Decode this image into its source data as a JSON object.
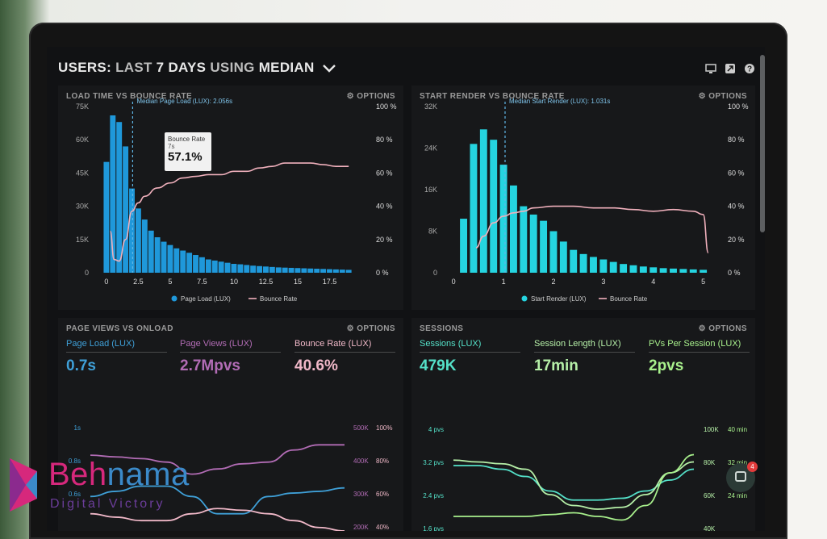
{
  "header": {
    "title_parts": [
      "USERS: ",
      "LAST ",
      "7 DAYS",
      " USING ",
      "MEDIAN"
    ],
    "icons": [
      "monitor-icon",
      "share-icon",
      "help-icon"
    ]
  },
  "panels": {
    "load": {
      "title": "LOAD TIME VS BOUNCE RATE",
      "options": "OPTIONS",
      "median_label": "Median Page Load (LUX): 2.056s",
      "tooltip": {
        "title": "Bounce Rate",
        "sub": "7s",
        "value": "57.1%"
      },
      "legend": [
        "Page Load (LUX)",
        "Bounce Rate"
      ]
    },
    "render": {
      "title": "START RENDER VS BOUNCE RATE",
      "options": "OPTIONS",
      "median_label": "Median Start Render (LUX): 1.031s",
      "legend": [
        "Start Render (LUX)",
        "Bounce Rate"
      ]
    },
    "pageviews": {
      "title": "PAGE VIEWS VS ONLOAD",
      "options": "OPTIONS",
      "metrics": [
        {
          "label": "Page Load (LUX)",
          "value": "0.7s",
          "color": "#3fa0d8"
        },
        {
          "label": "Page Views (LUX)",
          "value": "2.7Mpvs",
          "color": "#b26cb5"
        },
        {
          "label": "Bounce Rate (LUX)",
          "value": "40.6%",
          "color": "#f0b8c8"
        }
      ]
    },
    "sessions": {
      "title": "SESSIONS",
      "options": "OPTIONS",
      "metrics": [
        {
          "label": "Sessions (LUX)",
          "value": "479K",
          "color": "#54e0c8"
        },
        {
          "label": "Session Length (LUX)",
          "value": "17min",
          "color": "#b6f0a8"
        },
        {
          "label": "PVs Per Session (LUX)",
          "value": "2pvs",
          "color": "#a8f08c"
        }
      ]
    }
  },
  "chart_data": [
    {
      "type": "bar",
      "title": "LOAD TIME VS BOUNCE RATE",
      "x_ticks": [
        "0",
        "2.5",
        "5",
        "7.5",
        "10",
        "12.5",
        "15",
        "17.5"
      ],
      "y_ticks": [
        "0",
        "15K",
        "30K",
        "45K",
        "60K",
        "75K"
      ],
      "y2_ticks": [
        "0 %",
        "20 %",
        "40 %",
        "60 %",
        "80 %",
        "100 %"
      ],
      "xlim": [
        -0.5,
        20
      ],
      "ylim": [
        0,
        75000
      ],
      "y2lim": [
        0,
        100
      ],
      "bar_width": 0.5,
      "series": [
        {
          "name": "Page Load (LUX)",
          "color": "#1f98da",
          "x": [
            0,
            0.5,
            1,
            1.5,
            2,
            2.5,
            3,
            3.5,
            4,
            4.5,
            5,
            5.5,
            6,
            6.5,
            7,
            7.5,
            8,
            8.5,
            9,
            9.5,
            10,
            10.5,
            11,
            11.5,
            12,
            12.5,
            13,
            13.5,
            14,
            14.5,
            15,
            15.5,
            16,
            16.5,
            17,
            17.5,
            18,
            18.5,
            19
          ],
          "values": [
            50000,
            71000,
            68000,
            57000,
            38000,
            29000,
            24000,
            19000,
            16000,
            14000,
            12500,
            11000,
            10000,
            9000,
            8000,
            7000,
            6000,
            5500,
            5000,
            4500,
            4000,
            3800,
            3500,
            3200,
            3000,
            2800,
            2600,
            2400,
            2300,
            2200,
            2100,
            2000,
            1900,
            1800,
            1700,
            1600,
            1500,
            1400,
            1300
          ]
        },
        {
          "name": "Bounce Rate",
          "color": "#f0b0bc",
          "axis": "y2",
          "x": [
            0.3,
            0.6,
            1.0,
            1.5,
            2.0,
            2.5,
            3,
            4,
            5,
            6,
            7,
            8,
            9,
            10,
            11,
            12,
            13,
            14,
            15,
            16,
            17,
            18,
            19
          ],
          "values": [
            25,
            8,
            7,
            20,
            37,
            42,
            46,
            51,
            54,
            57,
            58,
            59,
            59,
            61,
            61,
            63,
            64,
            66,
            66,
            66,
            65,
            64,
            64
          ]
        }
      ],
      "median_x": 2.056,
      "legend": [
        "Page Load (LUX)",
        "Bounce Rate"
      ]
    },
    {
      "type": "bar",
      "title": "START RENDER VS BOUNCE RATE",
      "x_ticks": [
        "0",
        "1",
        "2",
        "3",
        "4",
        "5"
      ],
      "y_ticks": [
        "0",
        "8K",
        "16K",
        "24K",
        "32K"
      ],
      "y2_ticks": [
        "0 %",
        "20 %",
        "40 %",
        "60 %",
        "80 %",
        "100 %"
      ],
      "xlim": [
        -0.1,
        5.2
      ],
      "ylim": [
        0,
        40000
      ],
      "y2lim": [
        0,
        100
      ],
      "bar_width": 0.16,
      "series": [
        {
          "name": "Start Render (LUX)",
          "color": "#25d4e0",
          "x": [
            0.2,
            0.4,
            0.6,
            0.8,
            1.0,
            1.2,
            1.4,
            1.6,
            1.8,
            2.0,
            2.2,
            2.4,
            2.6,
            2.8,
            3.0,
            3.2,
            3.4,
            3.6,
            3.8,
            4.0,
            4.2,
            4.4,
            4.6,
            4.8,
            5.0
          ],
          "values": [
            13000,
            31000,
            34500,
            32000,
            26000,
            21000,
            16000,
            14000,
            12500,
            10000,
            7500,
            5500,
            4500,
            3800,
            3200,
            2600,
            2100,
            1800,
            1500,
            1300,
            1100,
            1000,
            900,
            800,
            700
          ]
        },
        {
          "name": "Bounce Rate",
          "color": "#f0b0bc",
          "axis": "y2",
          "x": [
            0.45,
            0.6,
            0.8,
            1.0,
            1.2,
            1.4,
            1.6,
            2,
            2.4,
            2.8,
            3.2,
            3.6,
            4.0,
            4.4,
            4.8,
            5.0,
            5.1
          ],
          "values": [
            15,
            22,
            30,
            34,
            36,
            37,
            39,
            40,
            40,
            39,
            39,
            38,
            37,
            38,
            37,
            35,
            12
          ]
        }
      ],
      "median_x": 1.031,
      "legend": [
        "Start Render (LUX)",
        "Bounce Rate"
      ]
    },
    {
      "type": "line",
      "title": "PAGE VIEWS VS ONLOAD",
      "y_ticks": [
        "1s",
        "0.8s",
        "0.6s"
      ],
      "y2_ticks": [
        "500K",
        "400K",
        "300K",
        "200K"
      ],
      "y3_ticks": [
        "100%",
        "80%",
        "60%",
        "40%"
      ],
      "xlim": [
        0,
        10
      ],
      "ylim": [
        0.4,
        1.0
      ],
      "series": [
        {
          "name": "Page Load (LUX)",
          "color": "#3fa0d8",
          "x": [
            0,
            1,
            2,
            3,
            4,
            5,
            6,
            7,
            8,
            9,
            10
          ],
          "values": [
            0.6,
            0.63,
            0.66,
            0.66,
            0.6,
            0.5,
            0.5,
            0.6,
            0.62,
            0.63,
            0.65
          ]
        },
        {
          "name": "Page Views (LUX)",
          "color": "#b26cb5",
          "x": [
            0,
            1,
            2,
            3,
            4,
            5,
            6,
            7,
            8,
            9,
            10
          ],
          "values": [
            0.84,
            0.83,
            0.82,
            0.8,
            0.73,
            0.76,
            0.79,
            0.8,
            0.87,
            0.9,
            0.9
          ]
        },
        {
          "name": "Bounce Rate (LUX)",
          "color": "#f0b8c8",
          "x": [
            0,
            1,
            2,
            3,
            4,
            5,
            6,
            7,
            8,
            9,
            10
          ],
          "values": [
            0.5,
            0.48,
            0.46,
            0.46,
            0.5,
            0.53,
            0.52,
            0.5,
            0.46,
            0.42,
            0.4
          ]
        }
      ]
    },
    {
      "type": "line",
      "title": "SESSIONS",
      "y_ticks": [
        "4 pvs",
        "3.2 pvs",
        "2.4 pvs",
        "1.6 pvs"
      ],
      "y2_ticks": [
        "100K",
        "80K",
        "60K",
        "40K"
      ],
      "y3_ticks": [
        "40 min",
        "32 min",
        "24 min"
      ],
      "xlim": [
        0,
        10
      ],
      "ylim": [
        1.2,
        4.0
      ],
      "series": [
        {
          "name": "Sessions (LUX)",
          "color": "#54e0c8",
          "x": [
            0,
            1,
            2,
            3,
            4,
            5,
            6,
            7,
            8,
            9,
            10
          ],
          "values": [
            3.0,
            3.0,
            2.9,
            2.7,
            2.3,
            2.05,
            2.05,
            2.1,
            2.3,
            2.6,
            2.9
          ]
        },
        {
          "name": "Session Length (LUX)",
          "color": "#b6f0a8",
          "x": [
            0,
            1,
            2,
            3,
            4,
            5,
            6,
            7,
            8,
            9,
            10
          ],
          "values": [
            3.15,
            3.1,
            3.05,
            2.9,
            2.2,
            1.9,
            1.8,
            1.85,
            2.2,
            2.8,
            3.1
          ]
        },
        {
          "name": "PVs Per Session (LUX)",
          "color": "#a8f08c",
          "x": [
            0,
            1,
            2,
            3,
            4,
            5,
            6,
            7,
            8,
            9,
            10
          ],
          "values": [
            1.6,
            1.6,
            1.6,
            1.6,
            1.65,
            1.7,
            1.6,
            1.5,
            1.9,
            2.8,
            3.3
          ]
        }
      ]
    }
  ],
  "chat": {
    "badge": "4"
  },
  "watermark": {
    "name_a": "Beh",
    "name_b": "nama",
    "tagline": "Digital Victory"
  }
}
